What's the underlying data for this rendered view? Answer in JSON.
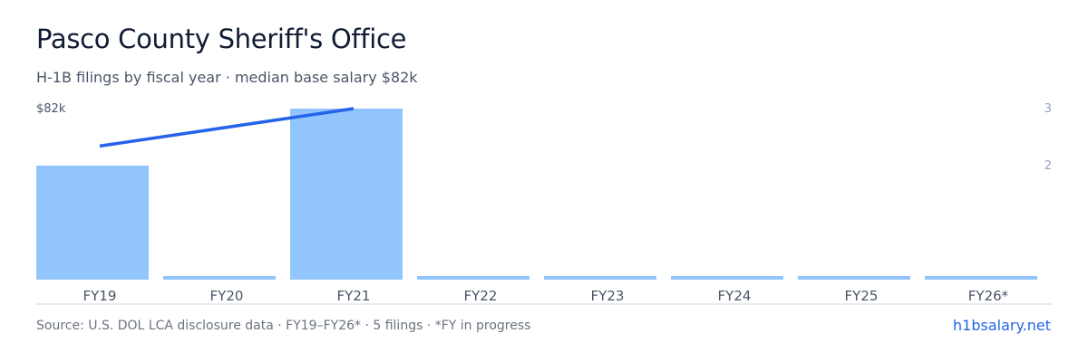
{
  "header": {
    "title": "Pasco County Sheriff's Office",
    "subtitle": "H-1B filings by fiscal year · median base salary $82k"
  },
  "footer": {
    "source": "Source: U.S. DOL LCA disclosure data · FY19–FY26* · 5 filings · *FY in progress",
    "site_link": "h1bsalary.net"
  },
  "colors": {
    "bar": "#93c5fd",
    "line": "#2563eb",
    "axis": "#d1d5db",
    "tick_text": "#4a5568",
    "secondary_axis_text": "#94a3b8"
  },
  "chart_data": {
    "type": "bar",
    "categories": [
      "FY19",
      "FY20",
      "FY21",
      "FY22",
      "FY23",
      "FY24",
      "FY25",
      "FY26*"
    ],
    "series": [
      {
        "type": "bar",
        "axis": "right",
        "values": [
          2,
          0,
          3,
          0,
          0,
          0,
          0,
          0
        ]
      },
      {
        "type": "line",
        "axis": "left",
        "values": [
          75000,
          null,
          82000,
          null,
          null,
          null,
          null,
          null
        ]
      }
    ],
    "left_axis": {
      "tick_labels": [
        "$82k"
      ],
      "ylim": [
        50000,
        82000
      ]
    },
    "right_axis": {
      "ticks": [
        2,
        3
      ],
      "ylim": [
        0,
        3
      ]
    },
    "grid": false,
    "legend": "none"
  }
}
